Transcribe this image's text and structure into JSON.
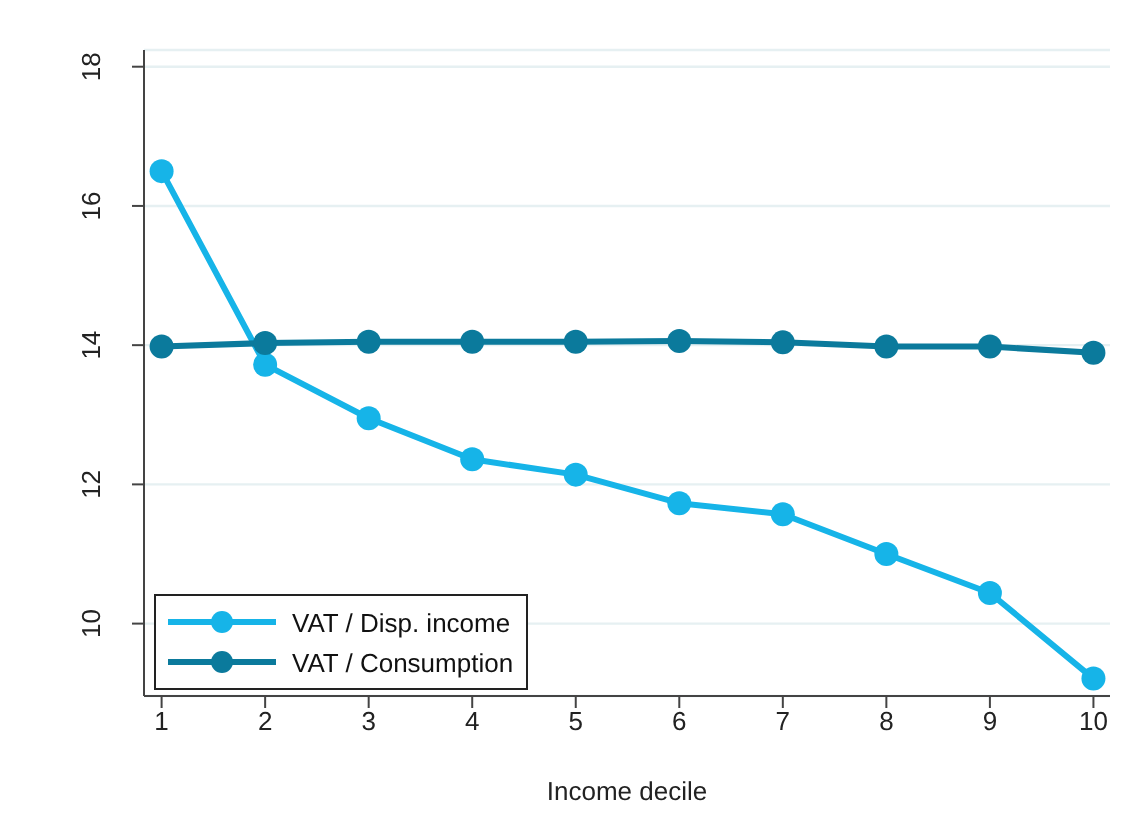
{
  "chart_data": {
    "type": "line",
    "xlabel": "Income decile",
    "x": [
      1,
      2,
      3,
      4,
      5,
      6,
      7,
      8,
      9,
      10
    ],
    "xlim": [
      0.83,
      10.16
    ],
    "xticks": [
      1,
      2,
      3,
      4,
      5,
      6,
      7,
      8,
      9,
      10
    ],
    "ylim": [
      8.96,
      18.24
    ],
    "yticks": [
      10,
      12,
      14,
      16,
      18
    ],
    "grid": "y",
    "legend": "bottom left",
    "marker": "circle",
    "line_style": "solid",
    "series": [
      {
        "name": "VAT / Disp. income",
        "color": "#16b4e8",
        "values": [
          16.5,
          13.72,
          12.95,
          12.36,
          12.14,
          11.73,
          11.57,
          11.0,
          10.44,
          9.21
        ]
      },
      {
        "name": "VAT / Consumption",
        "color": "#0b7a9c",
        "values": [
          13.98,
          14.03,
          14.05,
          14.05,
          14.05,
          14.06,
          14.04,
          13.98,
          13.98,
          13.89
        ]
      }
    ]
  }
}
